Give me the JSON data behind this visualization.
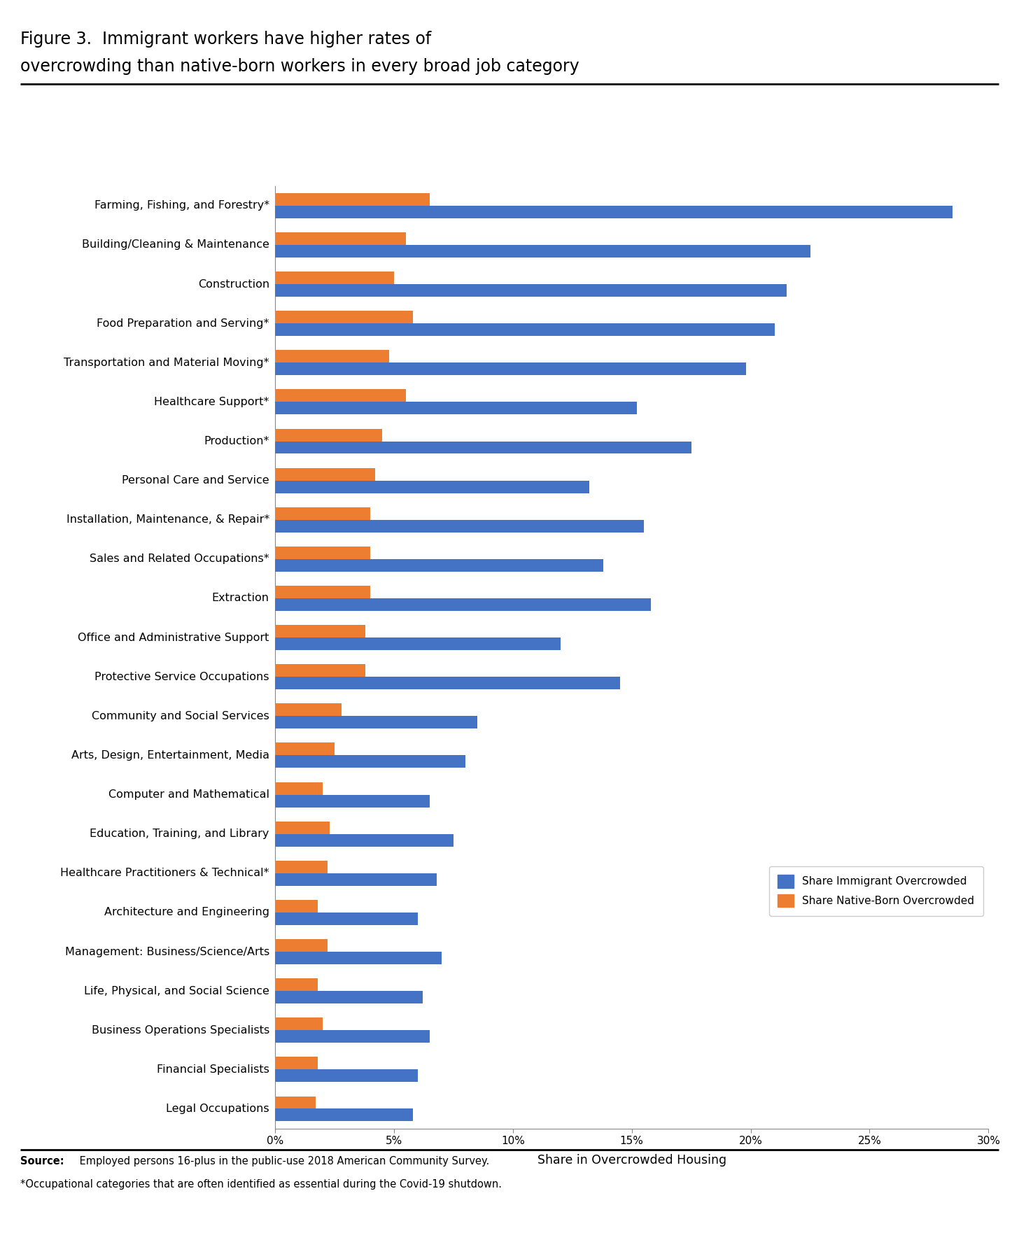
{
  "title_line1": "Figure 3.  Immigrant workers have higher rates of",
  "title_line2": "overcrowding than native-born workers in every broad job category",
  "categories": [
    "Farming, Fishing, and Forestry*",
    "Building/Cleaning & Maintenance",
    "Construction",
    "Food Preparation and Serving*",
    "Transportation and Material Moving*",
    "Healthcare Support*",
    "Production*",
    "Personal Care and Service",
    "Installation, Maintenance, & Repair*",
    "Sales and Related Occupations*",
    "Extraction",
    "Office and Administrative Support",
    "Protective Service Occupations",
    "Community and Social Services",
    "Arts, Design, Entertainment, Media",
    "Computer and Mathematical",
    "Education, Training, and Library",
    "Healthcare Practitioners & Technical*",
    "Architecture and Engineering",
    "Management: Business/Science/Arts",
    "Life, Physical, and Social Science",
    "Business Operations Specialists",
    "Financial Specialists",
    "Legal Occupations"
  ],
  "immigrant_values": [
    28.5,
    22.5,
    21.5,
    21.0,
    19.8,
    15.2,
    17.5,
    13.2,
    15.5,
    13.8,
    15.8,
    12.0,
    14.5,
    8.5,
    8.0,
    6.5,
    7.5,
    6.8,
    6.0,
    7.0,
    6.2,
    6.5,
    6.0,
    5.8
  ],
  "native_values": [
    6.5,
    5.5,
    5.0,
    5.8,
    4.8,
    5.5,
    4.5,
    4.2,
    4.0,
    4.0,
    4.0,
    3.8,
    3.8,
    2.8,
    2.5,
    2.0,
    2.3,
    2.2,
    1.8,
    2.2,
    1.8,
    2.0,
    1.8,
    1.7
  ],
  "immigrant_color": "#4472C4",
  "native_color": "#ED7D31",
  "xlabel": "Share in Overcrowded Housing",
  "xlim_max": 30,
  "xticks": [
    0,
    5,
    10,
    15,
    20,
    25,
    30
  ],
  "xtick_labels": [
    "0%",
    "5%",
    "10%",
    "15%",
    "20%",
    "25%",
    "30%"
  ],
  "legend_immigrant": "Share Immigrant Overcrowded",
  "legend_native": "Share Native-Born Overcrowded",
  "source_bold": "Source:",
  "source_rest": " Employed persons 16-plus in the public-use 2018 American Community Survey.",
  "source_line2": "*Occupational categories that are often identified as essential during the Covid-19 shutdown.",
  "background_color": "#FFFFFF",
  "bar_height": 0.32,
  "title_fontsize": 17,
  "label_fontsize": 11.5,
  "tick_fontsize": 11,
  "source_fontsize": 10.5
}
